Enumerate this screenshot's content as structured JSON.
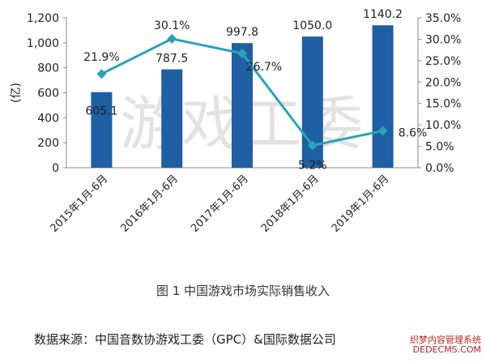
{
  "chart_data": {
    "type": "bar",
    "categories": [
      "2015年1月-6月",
      "2016年1月-6月",
      "2017年1月-6月",
      "2018年1月-6月",
      "2019年1月-6月"
    ],
    "series": [
      {
        "type": "bar",
        "axis": "left",
        "values": [
          605.1,
          787.5,
          997.8,
          1050.0,
          1140.2
        ],
        "labels": [
          "605.1",
          "787.5",
          "997.8",
          "1050.0",
          "1140.2"
        ],
        "color": "#1f5fa3"
      },
      {
        "type": "line",
        "axis": "right",
        "values": [
          21.9,
          30.1,
          26.7,
          5.2,
          8.6
        ],
        "labels": [
          "21.9%",
          "30.1%",
          "26.7%",
          "5.2%",
          "8.6%"
        ],
        "color": "#2aa3b8"
      }
    ],
    "ylabel": "(亿)",
    "ylim": [
      0,
      1200
    ],
    "yticks": [
      "0",
      "200",
      "400",
      "600",
      "800",
      "1,000",
      "1,200"
    ],
    "y2lim": [
      0,
      35
    ],
    "y2ticks": [
      "0.0%",
      "5.0%",
      "10.0%",
      "15.0%",
      "20.0%",
      "25.0%",
      "30.0%",
      "35.0%"
    ],
    "grid": false,
    "legend": "none"
  },
  "watermark": "游戏工委",
  "caption": "图 1  中国游戏市场实际销售收入",
  "source": "数据来源：中国音数协游戏工委（GPC）&国际数据公司",
  "site_watermark": [
    "织梦内容管理系统",
    "DEDECMS.COM"
  ]
}
